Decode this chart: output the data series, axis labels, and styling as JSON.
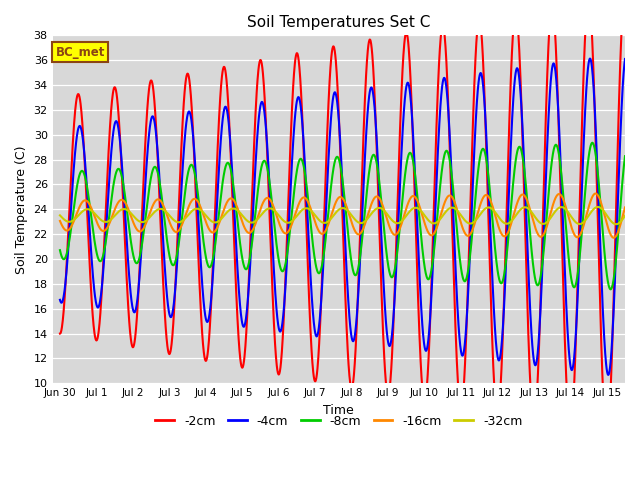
{
  "title": "Soil Temperatures Set C",
  "xlabel": "Time",
  "ylabel": "Soil Temperature (C)",
  "ylim": [
    10,
    38
  ],
  "plot_bg_color": "#d8d8d8",
  "fig_bg": "#ffffff",
  "annotation_text": "BC_met",
  "annotation_bg": "#ffff00",
  "annotation_border": "#8B4513",
  "legend_entries": [
    "-2cm",
    "-4cm",
    "-8cm",
    "-16cm",
    "-32cm"
  ],
  "line_colors": [
    "#ff0000",
    "#0000ff",
    "#00cc00",
    "#ff8800",
    "#cccc00"
  ],
  "line_widths": [
    1.5,
    1.5,
    1.5,
    1.5,
    1.5
  ],
  "tick_labels": [
    "Jun 30",
    "Jul 1",
    "Jul 2",
    "Jul 3",
    "Jul 4",
    "Jul 5",
    "Jul 6",
    "Jul 7",
    "Jul 8",
    "Jul 9",
    "Jul 10",
    "Jul 11",
    "Jul 12",
    "Jul 13",
    "Jul 14",
    "Jul 15"
  ],
  "num_days": 15.5,
  "amplitudes_start": [
    9.5,
    7.0,
    3.5,
    1.2,
    0.5
  ],
  "amplitudes_end": [
    18.0,
    13.0,
    6.0,
    1.8,
    0.7
  ],
  "means": [
    23.5,
    23.5,
    23.5,
    23.5,
    23.5
  ],
  "phase_offsets_rad": [
    0.0,
    0.25,
    0.65,
    1.2,
    1.6
  ],
  "trend_slopes": [
    0.0,
    0.0,
    0.0,
    0.0,
    0.0
  ]
}
